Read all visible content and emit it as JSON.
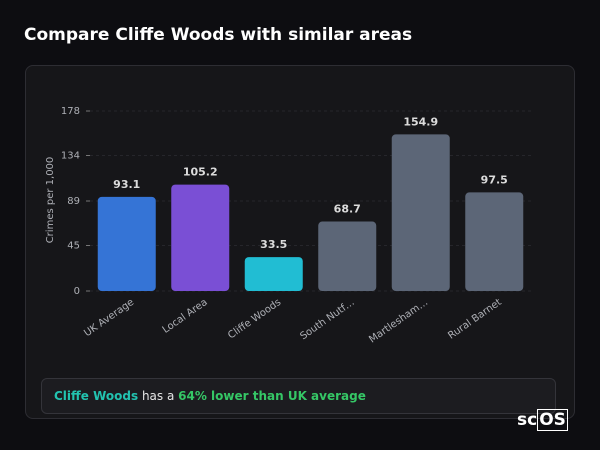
{
  "page_title": "Compare Cliffe Woods with similar areas",
  "chart_data": {
    "type": "bar",
    "y_label": "Crimes per 1,000",
    "categories": [
      "UK Average",
      "Local Area",
      "Cliffe Woods",
      "South Nutf…",
      "Martlesham…",
      "Rural Barnet"
    ],
    "values": [
      93.1,
      105.2,
      33.5,
      68.7,
      154.9,
      97.5
    ],
    "colors": [
      "#3574d6",
      "#7a4fd5",
      "#21bdd3",
      "#5c6677",
      "#5c6677",
      "#5c6677"
    ],
    "ylim": [
      0,
      178
    ],
    "yticks": [
      0,
      45,
      89,
      134,
      178
    ],
    "grid": true
  },
  "summary": {
    "place": "Cliffe Woods",
    "text": "has a",
    "highlight": "64% lower than UK average"
  },
  "logo": {
    "prefix": "sc",
    "boxed": "OS"
  }
}
